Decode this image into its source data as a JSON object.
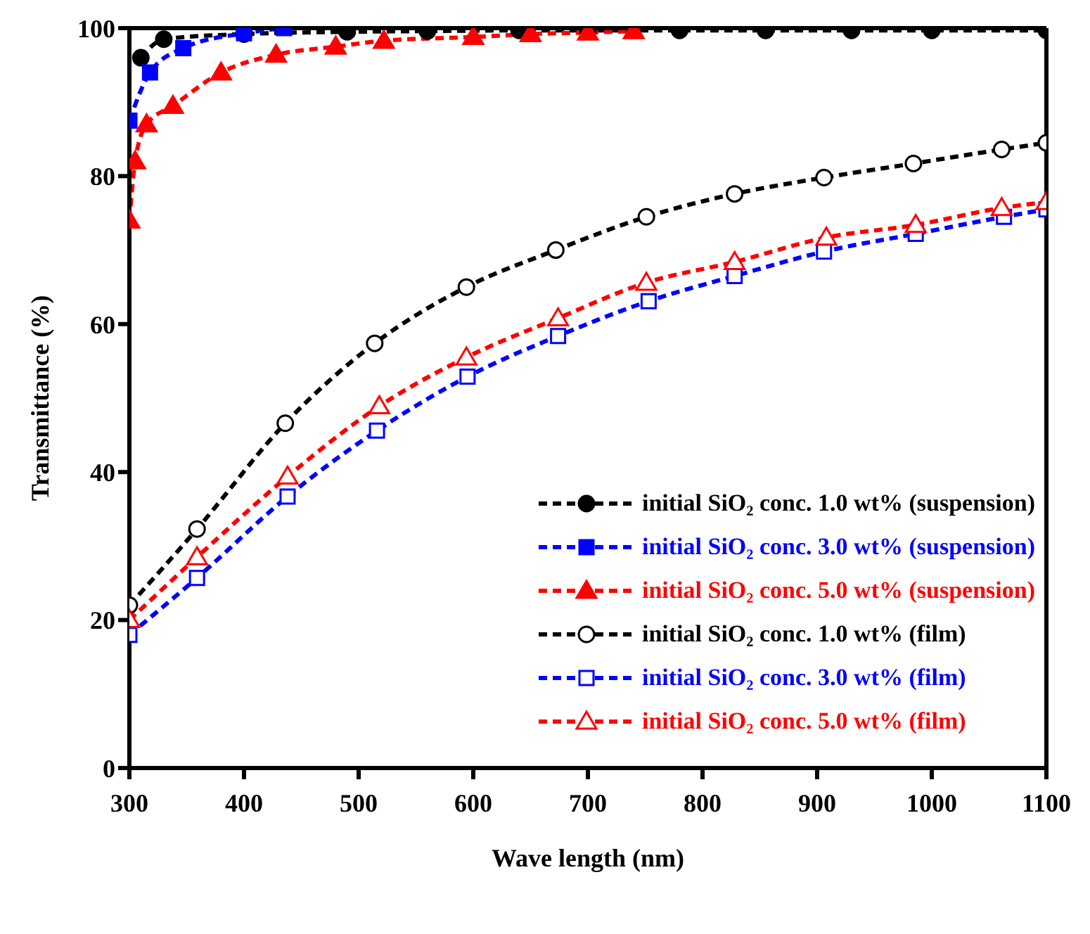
{
  "chart_data": {
    "type": "line",
    "xlabel": "Wave length (nm)",
    "ylabel": "Transmittance (%)",
    "xlim": [
      300,
      1100
    ],
    "ylim": [
      0,
      100
    ],
    "xticks": [
      300,
      400,
      500,
      600,
      700,
      800,
      900,
      1000,
      1100
    ],
    "yticks": [
      0,
      20,
      40,
      60,
      80,
      100
    ],
    "legend": "bottom right",
    "line_style": "dashed",
    "series": [
      {
        "name": "initial SiO₂ conc. 1.0 wt% (suspension)",
        "color": "#000000",
        "marker": "circle",
        "x": [
          310,
          330,
          400,
          490,
          560,
          640,
          700,
          780,
          855,
          930,
          1000,
          1100
        ],
        "values": [
          96,
          98.5,
          99.2,
          99.5,
          99.6,
          99.7,
          99.7,
          99.7,
          99.7,
          99.7,
          99.7,
          99.7
        ]
      },
      {
        "name": "initial SiO₂ conc. 3.0 wt% (suspension)",
        "color": "#0000ff",
        "marker": "square",
        "x": [
          300,
          318,
          347,
          400,
          435
        ],
        "values": [
          87.5,
          94,
          97.3,
          99.3,
          100
        ]
      },
      {
        "name": "initial SiO₂ conc. 5.0 wt% (suspension)",
        "color": "#ff0000",
        "marker": "triangle",
        "x": [
          300,
          305,
          315,
          338,
          380,
          428,
          480,
          522,
          600,
          650,
          700,
          740
        ],
        "values": [
          74,
          82,
          87,
          89.5,
          94,
          96.4,
          97.5,
          98.3,
          98.8,
          99.2,
          99.4,
          99.6
        ]
      },
      {
        "name": "initial SiO₂ conc. 1.0 wt% (film)",
        "color": "#000000",
        "marker": "circle-open",
        "x": [
          300,
          359,
          436,
          514,
          594,
          672,
          751,
          828,
          906,
          984,
          1061,
          1100
        ],
        "values": [
          22,
          32.3,
          46.6,
          57.4,
          65,
          70,
          74.5,
          77.6,
          79.8,
          81.7,
          83.6,
          84.5
        ]
      },
      {
        "name": "initial SiO₂ conc. 3.0 wt% (film)",
        "color": "#0000ff",
        "marker": "square-open",
        "x": [
          300,
          359,
          438,
          516,
          595,
          674,
          753,
          828,
          906,
          986,
          1063,
          1100
        ],
        "values": [
          18,
          25.7,
          36.7,
          45.6,
          52.9,
          58.4,
          63.1,
          66.5,
          69.8,
          72.2,
          74.5,
          75.5
        ]
      },
      {
        "name": "initial SiO₂ conc. 5.0 wt% (film)",
        "color": "#ff0000",
        "marker": "triangle-open",
        "x": [
          300,
          359,
          438,
          518,
          594,
          674,
          751,
          828,
          908,
          986,
          1061,
          1100
        ],
        "values": [
          20,
          28.5,
          39.4,
          48.9,
          55.5,
          60.8,
          65.6,
          68.4,
          71.7,
          73.4,
          75.7,
          76.5
        ]
      }
    ]
  }
}
